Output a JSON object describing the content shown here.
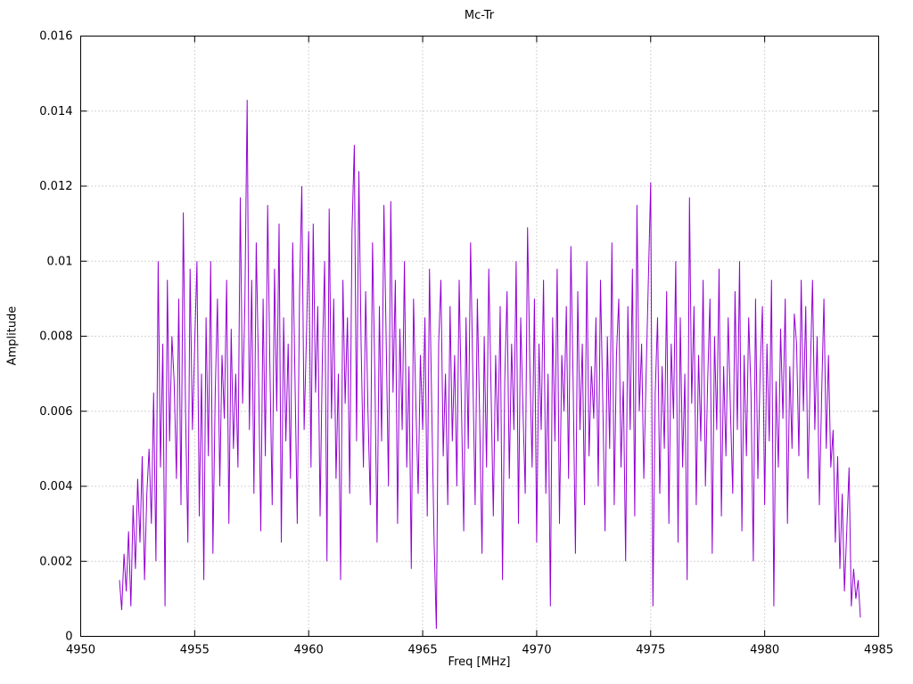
{
  "chart_data": {
    "type": "line",
    "title": "Mc-Tr",
    "xlabel": "Freq [MHz]",
    "ylabel": "Amplitude",
    "xlim": [
      4950,
      4985
    ],
    "ylim": [
      0,
      0.016
    ],
    "xticks": [
      4950,
      4955,
      4960,
      4965,
      4970,
      4975,
      4980,
      4985
    ],
    "xtick_labels": [
      "4950",
      "4955",
      "4960",
      "4965",
      "4970",
      "4975",
      "4980",
      "4985"
    ],
    "yticks": [
      0,
      0.002,
      0.004,
      0.006,
      0.008,
      0.01,
      0.012,
      0.014,
      0.016
    ],
    "ytick_labels": [
      "0",
      "0.002",
      "0.004",
      "0.006",
      "0.008",
      "0.01",
      "0.012",
      "0.014",
      "0.016"
    ],
    "grid": true,
    "legend": "none",
    "line_color": "#9400d3",
    "series": [
      {
        "name": "Mc-Tr",
        "x_start": 4951.7,
        "x_step": 0.1,
        "y": [
          0.0015,
          0.0007,
          0.0022,
          0.0012,
          0.0028,
          0.0008,
          0.0035,
          0.0018,
          0.0042,
          0.0025,
          0.0048,
          0.0015,
          0.0038,
          0.005,
          0.003,
          0.0065,
          0.002,
          0.01,
          0.0045,
          0.0078,
          0.0008,
          0.0095,
          0.0052,
          0.008,
          0.0068,
          0.0042,
          0.009,
          0.0035,
          0.0113,
          0.006,
          0.0025,
          0.0098,
          0.0055,
          0.0078,
          0.01,
          0.0032,
          0.007,
          0.0015,
          0.0085,
          0.0048,
          0.01,
          0.0022,
          0.0065,
          0.009,
          0.004,
          0.0075,
          0.0058,
          0.0095,
          0.003,
          0.0082,
          0.005,
          0.007,
          0.0045,
          0.0117,
          0.0062,
          0.0088,
          0.0143,
          0.0055,
          0.0095,
          0.0038,
          0.0105,
          0.007,
          0.0028,
          0.009,
          0.0048,
          0.0115,
          0.0072,
          0.0035,
          0.0098,
          0.006,
          0.011,
          0.0025,
          0.0085,
          0.0052,
          0.0078,
          0.0042,
          0.0105,
          0.0068,
          0.003,
          0.0092,
          0.012,
          0.0055,
          0.008,
          0.0108,
          0.0045,
          0.011,
          0.0065,
          0.0088,
          0.0032,
          0.0075,
          0.01,
          0.002,
          0.0114,
          0.0058,
          0.009,
          0.0042,
          0.007,
          0.0015,
          0.0095,
          0.0062,
          0.0085,
          0.0038,
          0.0108,
          0.0131,
          0.0052,
          0.0124,
          0.0078,
          0.0045,
          0.0092,
          0.006,
          0.0035,
          0.0105,
          0.007,
          0.0025,
          0.0088,
          0.0052,
          0.0115,
          0.0078,
          0.004,
          0.0116,
          0.0065,
          0.0095,
          0.003,
          0.0082,
          0.0055,
          0.01,
          0.0045,
          0.0072,
          0.0018,
          0.009,
          0.0062,
          0.0038,
          0.0075,
          0.0055,
          0.0085,
          0.0032,
          0.0098,
          0.006,
          0.0025,
          0.0002,
          0.0078,
          0.0095,
          0.0048,
          0.007,
          0.0035,
          0.0088,
          0.0052,
          0.0075,
          0.004,
          0.0095,
          0.0062,
          0.0028,
          0.0085,
          0.005,
          0.0105,
          0.007,
          0.0035,
          0.009,
          0.0058,
          0.0022,
          0.008,
          0.0045,
          0.0098,
          0.0065,
          0.0032,
          0.0075,
          0.0052,
          0.0088,
          0.0015,
          0.0068,
          0.0092,
          0.0042,
          0.0078,
          0.0055,
          0.01,
          0.003,
          0.0085,
          0.006,
          0.0038,
          0.0109,
          0.0072,
          0.0045,
          0.009,
          0.0025,
          0.0078,
          0.0055,
          0.0095,
          0.0038,
          0.007,
          0.0008,
          0.0085,
          0.0052,
          0.0098,
          0.003,
          0.0075,
          0.006,
          0.0088,
          0.0042,
          0.0104,
          0.0068,
          0.0022,
          0.0092,
          0.0055,
          0.0078,
          0.0035,
          0.01,
          0.0048,
          0.0072,
          0.0058,
          0.0085,
          0.004,
          0.0095,
          0.0062,
          0.0028,
          0.008,
          0.005,
          0.0105,
          0.0035,
          0.0075,
          0.009,
          0.0045,
          0.0068,
          0.002,
          0.0088,
          0.0055,
          0.0098,
          0.0032,
          0.0115,
          0.006,
          0.0078,
          0.0042,
          0.007,
          0.0095,
          0.0121,
          0.0008,
          0.0065,
          0.0085,
          0.0038,
          0.0072,
          0.005,
          0.0092,
          0.003,
          0.0078,
          0.0058,
          0.01,
          0.0025,
          0.0085,
          0.0045,
          0.007,
          0.0015,
          0.0117,
          0.0062,
          0.0088,
          0.0035,
          0.0075,
          0.0052,
          0.0095,
          0.004,
          0.0068,
          0.009,
          0.0022,
          0.008,
          0.0055,
          0.0098,
          0.0032,
          0.0072,
          0.0048,
          0.0085,
          0.006,
          0.0038,
          0.0092,
          0.0055,
          0.01,
          0.0028,
          0.0075,
          0.0048,
          0.0085,
          0.0065,
          0.002,
          0.009,
          0.0042,
          0.007,
          0.0088,
          0.0035,
          0.0078,
          0.0052,
          0.0095,
          0.0008,
          0.0068,
          0.0045,
          0.0082,
          0.0058,
          0.009,
          0.003,
          0.0072,
          0.005,
          0.0086,
          0.0078,
          0.0048,
          0.0095,
          0.006,
          0.0088,
          0.0042,
          0.007,
          0.0095,
          0.0055,
          0.008,
          0.0035,
          0.0065,
          0.009,
          0.005,
          0.0075,
          0.0045,
          0.0055,
          0.0025,
          0.0048,
          0.0018,
          0.0038,
          0.0012,
          0.0028,
          0.0045,
          0.0008,
          0.0018,
          0.001,
          0.0015,
          0.0005
        ]
      }
    ]
  }
}
